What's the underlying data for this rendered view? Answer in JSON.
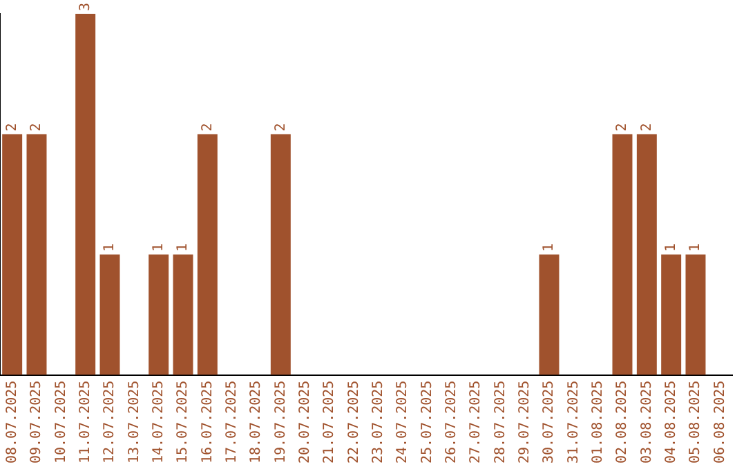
{
  "chart_data": {
    "type": "bar",
    "categories": [
      "08.07.2025",
      "09.07.2025",
      "10.07.2025",
      "11.07.2025",
      "12.07.2025",
      "13.07.2025",
      "14.07.2025",
      "15.07.2025",
      "16.07.2025",
      "17.07.2025",
      "18.07.2025",
      "19.07.2025",
      "20.07.2025",
      "21.07.2025",
      "22.07.2025",
      "23.07.2025",
      "24.07.2025",
      "25.07.2025",
      "26.07.2025",
      "27.07.2025",
      "28.07.2025",
      "29.07.2025",
      "30.07.2025",
      "31.07.2025",
      "01.08.2025",
      "02.08.2025",
      "03.08.2025",
      "04.08.2025",
      "05.08.2025",
      "06.08.2025"
    ],
    "values": [
      2,
      2,
      0,
      3,
      1,
      0,
      1,
      1,
      2,
      0,
      0,
      2,
      0,
      0,
      0,
      0,
      0,
      0,
      0,
      0,
      0,
      0,
      1,
      0,
      0,
      2,
      2,
      1,
      1,
      0
    ],
    "value_labels": [
      "2",
      "2",
      null,
      "3",
      "1",
      null,
      "1",
      "1",
      "2",
      null,
      null,
      "2",
      null,
      null,
      null,
      null,
      null,
      null,
      null,
      null,
      null,
      null,
      "1",
      null,
      null,
      "2",
      "2",
      "1",
      "1",
      null
    ],
    "color": "#a0522d",
    "grid": false,
    "legend": false,
    "tick_labels": "x"
  }
}
